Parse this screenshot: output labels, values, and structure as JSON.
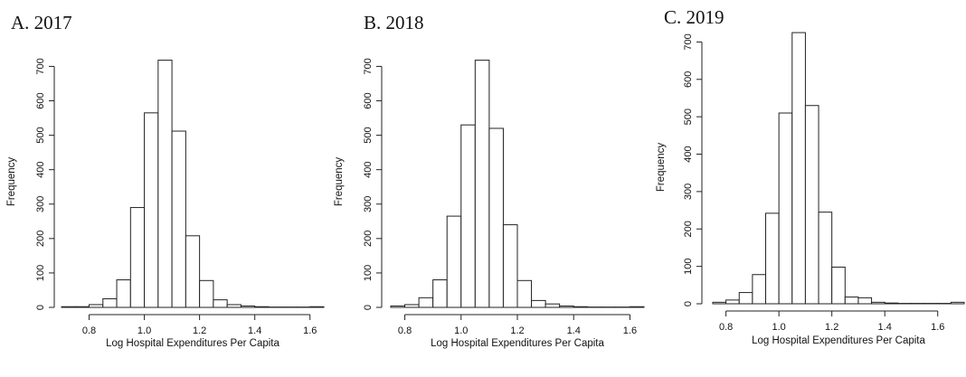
{
  "chart_data": [
    {
      "type": "bar",
      "title": "A. 2017",
      "xlabel": "Log Hospital Expenditures Per Capita",
      "ylabel": "Frequency",
      "bin_width": 0.05,
      "bin_starts": [
        0.7,
        0.75,
        0.8,
        0.85,
        0.9,
        0.95,
        1.0,
        1.05,
        1.1,
        1.15,
        1.2,
        1.25,
        1.3,
        1.35,
        1.4,
        1.45,
        1.5,
        1.55,
        1.6
      ],
      "values": [
        2,
        2,
        8,
        25,
        80,
        290,
        565,
        718,
        512,
        208,
        78,
        22,
        8,
        4,
        2,
        1,
        1,
        1,
        2
      ],
      "xlim": [
        0.7,
        1.65
      ],
      "ylim": [
        0,
        730
      ],
      "xticks": [
        0.8,
        1.0,
        1.2,
        1.4,
        1.6
      ],
      "xtick_labels": [
        "0.8",
        "1.0",
        "1.2",
        "1.4",
        "1.6"
      ],
      "yticks": [
        0,
        100,
        200,
        300,
        400,
        500,
        600,
        700
      ],
      "ytick_labels": [
        "0",
        "100",
        "200",
        "300",
        "400",
        "500",
        "600",
        "700"
      ],
      "grid": false
    },
    {
      "type": "bar",
      "title": "B. 2018",
      "xlabel": "Log Hospital Expenditures Per Capita",
      "ylabel": "Frequency",
      "bin_width": 0.05,
      "bin_starts": [
        0.75,
        0.8,
        0.85,
        0.9,
        0.95,
        1.0,
        1.05,
        1.1,
        1.15,
        1.2,
        1.25,
        1.3,
        1.35,
        1.4,
        1.45,
        1.5,
        1.55,
        1.6
      ],
      "values": [
        4,
        8,
        28,
        80,
        265,
        530,
        718,
        520,
        240,
        78,
        20,
        10,
        4,
        2,
        1,
        1,
        1,
        2
      ],
      "xlim": [
        0.75,
        1.65
      ],
      "ylim": [
        0,
        730
      ],
      "xticks": [
        0.8,
        1.0,
        1.2,
        1.4,
        1.6
      ],
      "xtick_labels": [
        "0.8",
        "1.0",
        "1.2",
        "1.4",
        "1.6"
      ],
      "yticks": [
        0,
        100,
        200,
        300,
        400,
        500,
        600,
        700
      ],
      "ytick_labels": [
        "0",
        "100",
        "200",
        "300",
        "400",
        "500",
        "600",
        "700"
      ],
      "grid": false
    },
    {
      "type": "bar",
      "title": "C. 2019",
      "xlabel": "Log Hospital Expenditures Per Capita",
      "ylabel": "Frequency",
      "bin_width": 0.05,
      "bin_starts": [
        0.75,
        0.8,
        0.85,
        0.9,
        0.95,
        1.0,
        1.05,
        1.1,
        1.15,
        1.2,
        1.25,
        1.3,
        1.35,
        1.4,
        1.45,
        1.5,
        1.55,
        1.6,
        1.65
      ],
      "values": [
        4,
        10,
        30,
        78,
        242,
        510,
        725,
        530,
        245,
        98,
        18,
        16,
        4,
        2,
        1,
        1,
        1,
        1,
        4
      ],
      "xlim": [
        0.75,
        1.7
      ],
      "ylim": [
        0,
        730
      ],
      "xticks": [
        0.8,
        1.0,
        1.2,
        1.4,
        1.6
      ],
      "xtick_labels": [
        "0.8",
        "1.0",
        "1.2",
        "1.4",
        "1.6"
      ],
      "yticks": [
        0,
        100,
        200,
        300,
        400,
        500,
        600,
        700
      ],
      "ytick_labels": [
        "0",
        "100",
        "200",
        "300",
        "400",
        "500",
        "600",
        "700"
      ],
      "grid": false
    }
  ]
}
